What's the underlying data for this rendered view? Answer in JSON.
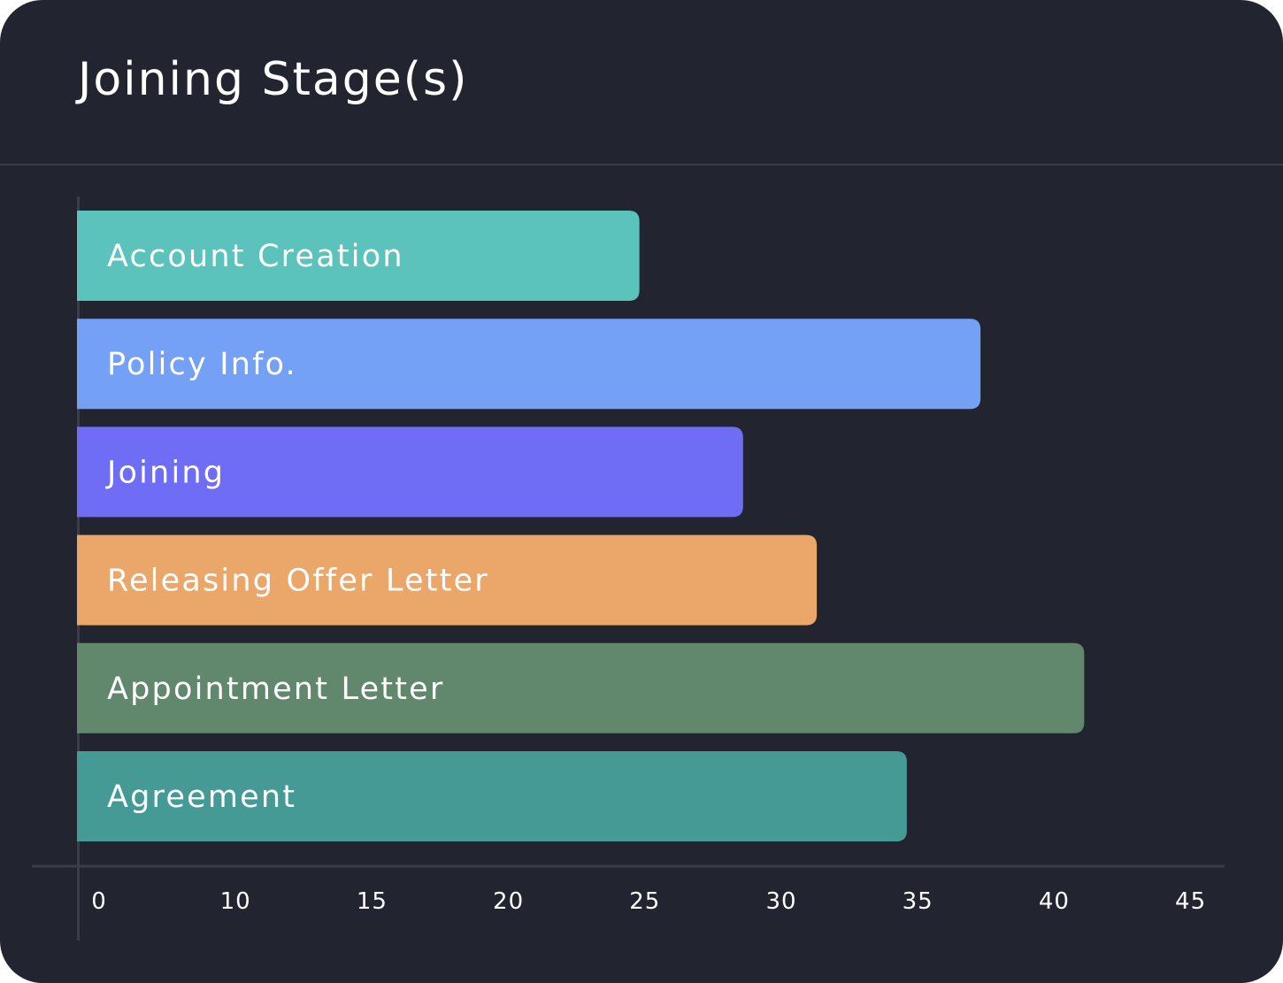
{
  "chart_data": {
    "type": "bar",
    "orientation": "horizontal",
    "title": "Joining Stage(s)",
    "xlabel": "",
    "ylabel": "",
    "categories": [
      "Account Creation",
      "Policy Info.",
      "Joining",
      "Releasing Offer Letter",
      "Appointment Letter",
      "Agreement"
    ],
    "values": [
      24.8,
      37.3,
      28.6,
      31.3,
      41.1,
      34.6
    ],
    "colors": [
      "#5bc2bc",
      "#74a0f6",
      "#6f6cf6",
      "#eba769",
      "#61876d",
      "#469a96"
    ],
    "x_ticks": [
      "0",
      "10",
      "15",
      "20",
      "25",
      "30",
      "35",
      "40",
      "45"
    ],
    "xlim": [
      5,
      45
    ],
    "grid": false,
    "legend": "none",
    "labels_inside_bars": true
  },
  "theme": {
    "background": "#22242f",
    "axis_color": "#3a3d4a",
    "text_color": "#ffffff"
  }
}
